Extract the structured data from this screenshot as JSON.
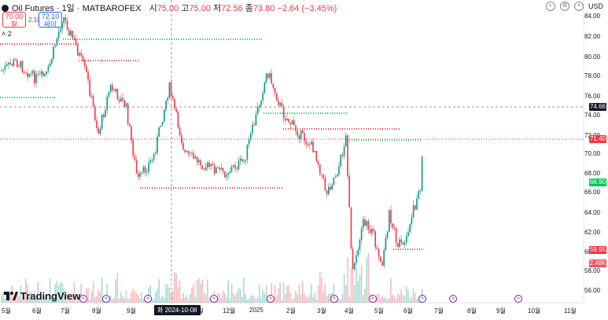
{
  "header": {
    "title": "Oil Futures · 1일 · MATBAROFEX",
    "open_label": "시",
    "open": "75.00",
    "high_label": "고",
    "high": "75.00",
    "low_label": "저",
    "low": "72.56",
    "close_label": "종",
    "close": "73.80",
    "change": "−2.64 (−3.45%)"
  },
  "trade": {
    "sell_price": "70.00",
    "sell_label": "팔",
    "buy_price": "72.10",
    "buy_label": "싸이",
    "spread": "2.10"
  },
  "indicator_toggle": "˄ 2",
  "currency": "USD",
  "icons": [
    "search-icon",
    "settings-icon",
    "close-icon"
  ],
  "y_axis": {
    "ticks": [
      "84.00",
      "82.00",
      "80.00",
      "78.00",
      "76.00",
      "74.00",
      "72.00",
      "70.00",
      "68.00",
      "66.00",
      "64.00",
      "62.00",
      "60.00",
      "58.00",
      "56.00"
    ],
    "tags": [
      {
        "value": "74.66",
        "color": "#131722"
      },
      {
        "value": "71.40",
        "color": "#f23645"
      },
      {
        "value": "66.90",
        "color": "#00c853"
      },
      {
        "value": "59.95",
        "color": "#f23645"
      },
      {
        "value": "2.48K",
        "color": "#f7525f"
      }
    ]
  },
  "x_axis": {
    "ticks": [
      "5월",
      "6월",
      "7월",
      "8월",
      "9월",
      "11월",
      "12월",
      "2025",
      "2월",
      "3월",
      "4월",
      "5월",
      "6월",
      "7월",
      "8월",
      "9월",
      "10월",
      "11월"
    ],
    "cursor_label": "화 2024-10-08"
  },
  "logo_text": "TradingView",
  "colors": {
    "up": "#089981",
    "down": "#f23645",
    "green_line": "#00c853",
    "red_line": "#f23645"
  }
}
